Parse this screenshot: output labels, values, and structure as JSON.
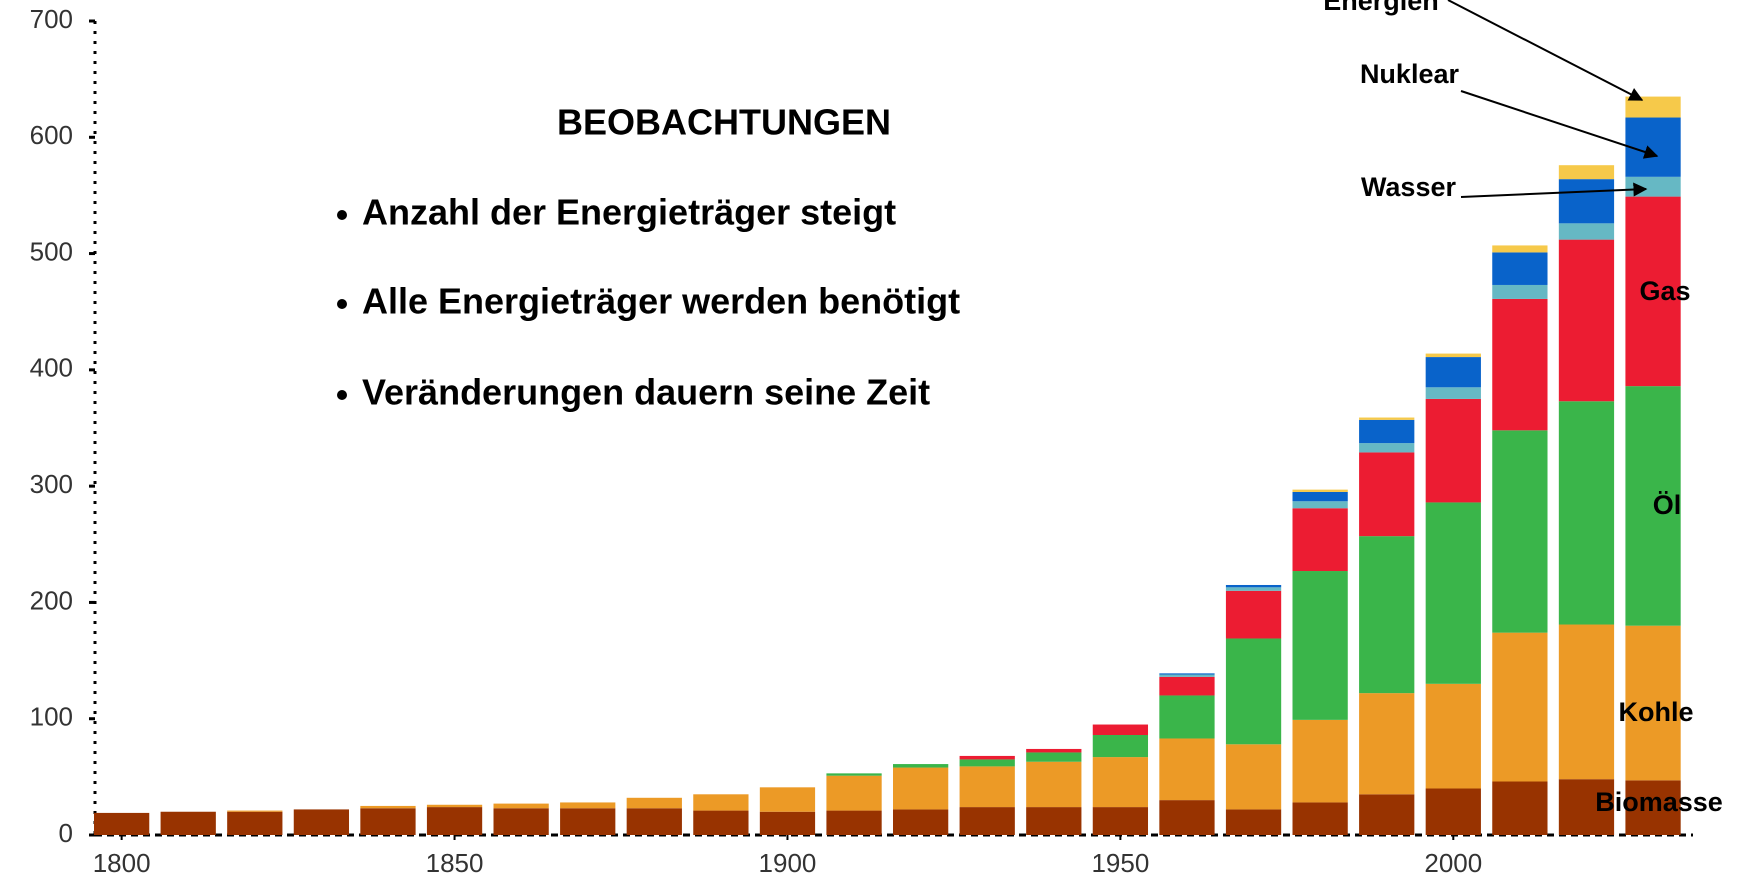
{
  "chart_data": {
    "type": "stacked_bar",
    "x": [
      1800,
      1810,
      1820,
      1830,
      1840,
      1850,
      1860,
      1870,
      1880,
      1890,
      1900,
      1910,
      1920,
      1930,
      1940,
      1950,
      1960,
      1970,
      1980,
      1990,
      2000,
      2010,
      2020,
      2030
    ],
    "series": [
      {
        "name": "Biomasse",
        "color": "#983300",
        "values": [
          19,
          20,
          20,
          22,
          23,
          24,
          23,
          23,
          23,
          21,
          20,
          21,
          22,
          24,
          24,
          24,
          30,
          22,
          28,
          35,
          40,
          46,
          48,
          47
        ]
      },
      {
        "name": "Kohle",
        "color": "#EC9A26",
        "values": [
          0,
          0,
          1,
          0,
          2,
          2,
          4,
          5,
          9,
          14,
          21,
          30,
          36,
          35,
          39,
          43,
          53,
          56,
          71,
          87,
          90,
          128,
          133,
          133
        ]
      },
      {
        "name": "Öl",
        "color": "#3AB54A",
        "values": [
          0,
          0,
          0,
          0,
          0,
          0,
          0,
          0,
          0,
          0,
          0,
          2,
          3,
          6,
          8,
          19,
          37,
          91,
          128,
          135,
          156,
          174,
          192,
          206
        ]
      },
      {
        "name": "Gas",
        "color": "#EC1C32",
        "values": [
          0,
          0,
          0,
          0,
          0,
          0,
          0,
          0,
          0,
          0,
          0,
          0,
          0,
          3,
          3,
          9,
          16,
          41,
          54,
          72,
          89,
          113,
          139,
          163
        ]
      },
      {
        "name": "Wasser",
        "color": "#66B8C4",
        "values": [
          0,
          0,
          0,
          0,
          0,
          0,
          0,
          0,
          0,
          0,
          0,
          0,
          0,
          0,
          0,
          0,
          2,
          3,
          6,
          8,
          10,
          12,
          14,
          17
        ]
      },
      {
        "name": "Nuklear",
        "color": "#0963CA",
        "values": [
          0,
          0,
          0,
          0,
          0,
          0,
          0,
          0,
          0,
          0,
          0,
          0,
          0,
          0,
          0,
          0,
          1,
          2,
          8,
          20,
          26,
          28,
          38,
          51
        ]
      },
      {
        "name": "Energien",
        "color": "#F6C94A",
        "values": [
          0,
          0,
          0,
          0,
          0,
          0,
          0,
          0,
          0,
          0,
          0,
          0,
          0,
          0,
          0,
          0,
          0,
          0,
          2,
          2,
          3,
          6,
          12,
          18
        ]
      }
    ],
    "xlim": [
      1796,
      2036
    ],
    "xticks": [
      1800,
      1850,
      1900,
      1950,
      2000
    ],
    "ylim": [
      0,
      700
    ],
    "yticks": [
      0,
      100,
      200,
      300,
      400,
      500,
      600,
      700
    ],
    "annotation_title": "BEOBACHTUNGEN",
    "annotations": [
      "Anzahl der Energieträger steigt",
      "Alle Energieträger werden benötigt",
      "Veränderungen dauern seine Zeit"
    ]
  }
}
